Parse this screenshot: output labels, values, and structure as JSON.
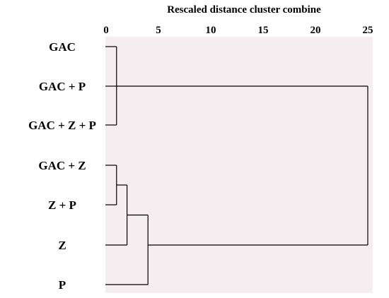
{
  "chart_data": {
    "type": "dendrogram",
    "title": "Rescaled distance cluster combine",
    "xlim": [
      0,
      25
    ],
    "xticks": [
      0,
      5,
      10,
      15,
      20,
      25
    ],
    "xtick_labels": [
      "0",
      "5",
      "10",
      "15",
      "20",
      "25"
    ],
    "leaves": [
      "GAC",
      "GAC + P",
      "GAC + Z + P",
      "GAC + Z",
      "Z + P",
      "Z",
      "P"
    ],
    "merges": [
      {
        "members": [
          "GAC",
          "GAC + P",
          "GAC + Z + P"
        ],
        "distance": 1.0
      },
      {
        "members": [
          "GAC + Z",
          "Z + P"
        ],
        "distance": 1.0
      },
      {
        "members": [
          "GAC + Z/Z + P",
          "Z"
        ],
        "distance": 2.0
      },
      {
        "members": [
          "GAC + Z/Z + P/Z",
          "P"
        ],
        "distance": 4.0
      },
      {
        "members": [
          "GAC/GAC + P/GAC + Z + P",
          "GAC + Z/Z + P/Z/P"
        ],
        "distance": 25.0
      }
    ],
    "colors": {
      "plot_background": "#f4eef0",
      "lines": "#000000"
    },
    "grid": false,
    "legend": "none"
  }
}
